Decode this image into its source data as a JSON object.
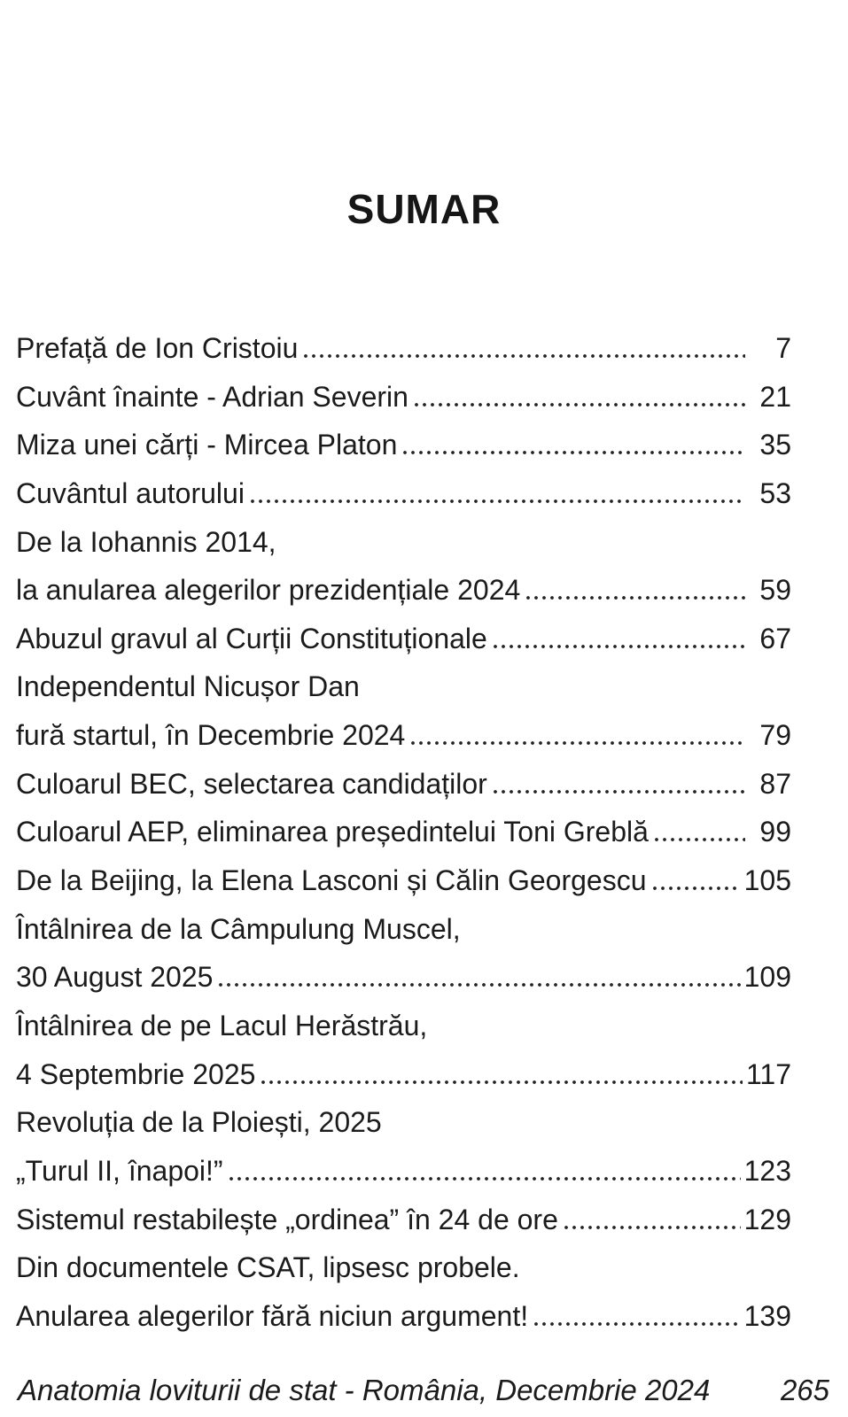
{
  "page": {
    "title": "SUMAR",
    "entries": [
      {
        "label": "Prefață de Ion Cristoiu",
        "page": "7"
      },
      {
        "label": "Cuvânt înainte - Adrian Severin",
        "page": "21"
      },
      {
        "label": "Miza unei cărți - Mircea Platon",
        "page": "35"
      },
      {
        "label": "Cuvântul autorului",
        "page": "53"
      },
      {
        "label": "De la Iohannis 2014,",
        "page": ""
      },
      {
        "label": "la anularea alegerilor prezidențiale 2024",
        "page": "59"
      },
      {
        "label": "Abuzul gravul al Curții Constituționale",
        "page": "67"
      },
      {
        "label": "Independentul Nicușor Dan",
        "page": ""
      },
      {
        "label": "fură startul, în Decembrie 2024",
        "page": "79"
      },
      {
        "label": "Culoarul BEC, selectarea candidaților",
        "page": "87"
      },
      {
        "label": "Culoarul AEP, eliminarea președintelui Toni Greblă",
        "page": "99"
      },
      {
        "label": "De la Beijing, la Elena Lasconi și Călin Georgescu",
        "page": "105"
      },
      {
        "label": "Întâlnirea de la Câmpulung Muscel,",
        "page": ""
      },
      {
        "label": "30 August 2025",
        "page": "109"
      },
      {
        "label": "Întâlnirea de pe Lacul Herăstrău,",
        "page": ""
      },
      {
        "label": "4 Septembrie 2025",
        "page": "117"
      },
      {
        "label": "Revoluția de la Ploiești, 2025",
        "page": ""
      },
      {
        "label": "„Turul II, înapoi!”",
        "page": "123"
      },
      {
        "label": "Sistemul restabilește „ordinea” în 24 de ore",
        "page": "129"
      },
      {
        "label": "Din documentele CSAT, lipsesc probele.",
        "page": ""
      },
      {
        "label": "Anularea alegerilor fără niciun argument!",
        "page": "139"
      }
    ],
    "footer": {
      "text": "Anatomia loviturii de stat - România, Decembrie 2024",
      "page": "265"
    }
  }
}
